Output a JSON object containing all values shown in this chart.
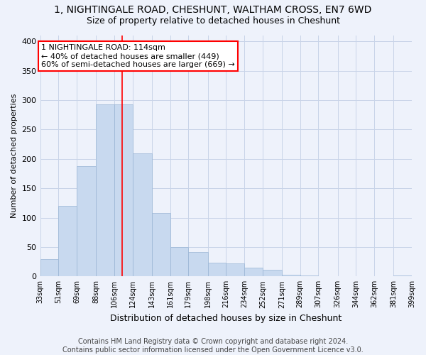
{
  "title": "1, NIGHTINGALE ROAD, CHESHUNT, WALTHAM CROSS, EN7 6WD",
  "subtitle": "Size of property relative to detached houses in Cheshunt",
  "xlabel": "Distribution of detached houses by size in Cheshunt",
  "ylabel": "Number of detached properties",
  "bar_color": "#c8d9ef",
  "bar_edgecolor": "#9ab5d5",
  "vline_x": 114,
  "vline_color": "red",
  "annotation_text": "1 NIGHTINGALE ROAD: 114sqm\n← 40% of detached houses are smaller (449)\n60% of semi-detached houses are larger (669) →",
  "annotation_box_color": "white",
  "annotation_box_edgecolor": "red",
  "background_color": "#eef2fb",
  "bins": [
    33,
    51,
    69,
    88,
    106,
    124,
    143,
    161,
    179,
    198,
    216,
    234,
    252,
    271,
    289,
    307,
    326,
    344,
    362,
    381,
    399
  ],
  "bin_labels": [
    "33sqm",
    "51sqm",
    "69sqm",
    "88sqm",
    "106sqm",
    "124sqm",
    "143sqm",
    "161sqm",
    "179sqm",
    "198sqm",
    "216sqm",
    "234sqm",
    "252sqm",
    "271sqm",
    "289sqm",
    "307sqm",
    "326sqm",
    "344sqm",
    "362sqm",
    "381sqm",
    "399sqm"
  ],
  "values": [
    29,
    120,
    188,
    293,
    293,
    210,
    108,
    50,
    41,
    23,
    22,
    15,
    11,
    3,
    1,
    0,
    0,
    0,
    0,
    2
  ],
  "ylim": [
    0,
    410
  ],
  "yticks": [
    0,
    50,
    100,
    150,
    200,
    250,
    300,
    350,
    400
  ],
  "footer": "Contains HM Land Registry data © Crown copyright and database right 2024.\nContains public sector information licensed under the Open Government Licence v3.0.",
  "grid_color": "#c8d4e8",
  "title_fontsize": 10,
  "subtitle_fontsize": 9,
  "footer_fontsize": 7,
  "annotation_fontsize": 8,
  "ylabel_fontsize": 8,
  "xlabel_fontsize": 9,
  "tick_fontsize": 7
}
